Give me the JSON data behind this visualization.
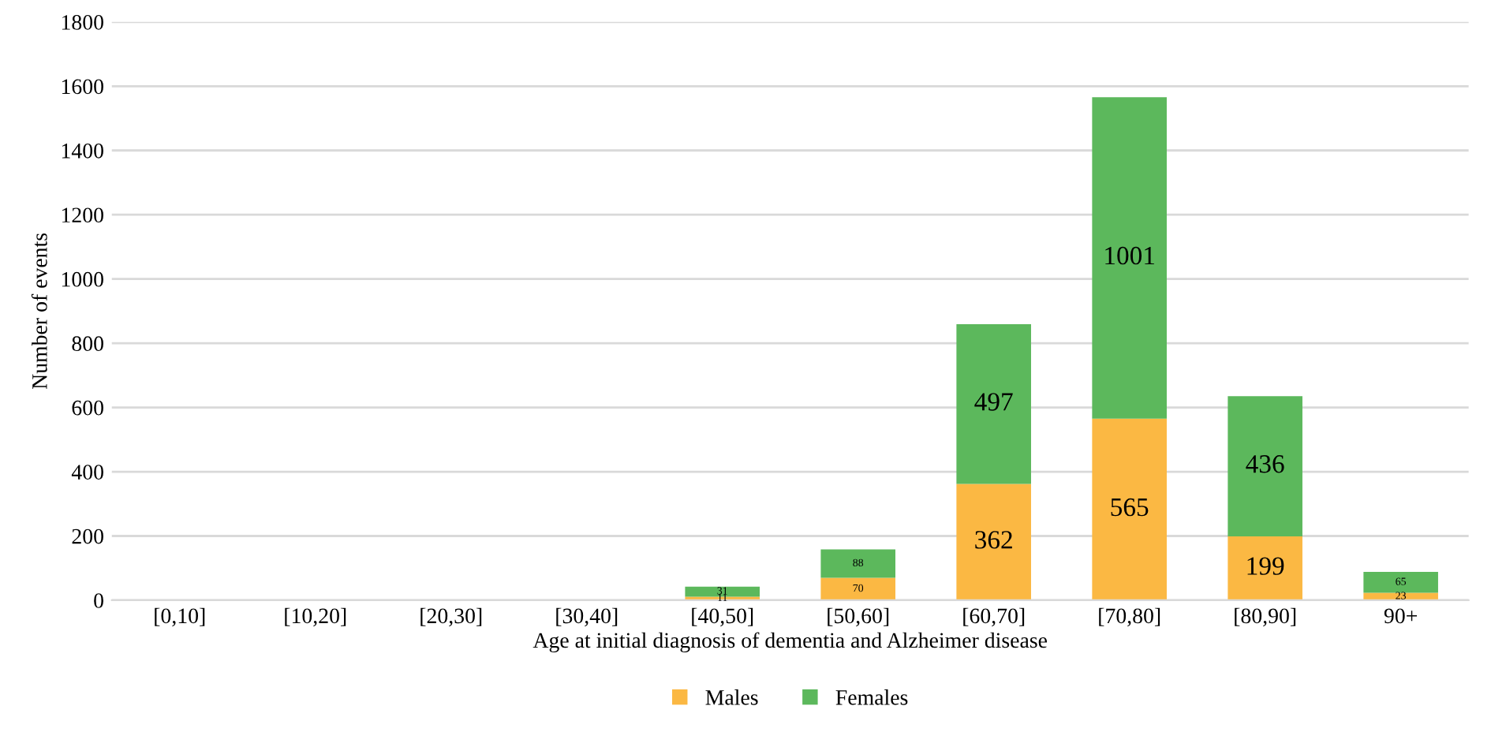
{
  "chart_data": {
    "type": "bar",
    "stacked": true,
    "xlabel": "Age at initial diagnosis of dementia and Alzheimer disease",
    "ylabel": "Number of events",
    "categories": [
      "[0,10]",
      "[10,20]",
      "[20,30]",
      "[30,40]",
      "[40,50]",
      "[50,60]",
      "[60,70]",
      "[70,80]",
      "[80,90]",
      "90+"
    ],
    "series": [
      {
        "name": "Males",
        "color": "#fbb843",
        "values": [
          null,
          null,
          null,
          null,
          11,
          70,
          362,
          565,
          199,
          23
        ]
      },
      {
        "name": "Females",
        "color": "#5cb85c",
        "values": [
          null,
          null,
          null,
          null,
          31,
          88,
          497,
          1001,
          436,
          65
        ]
      }
    ],
    "ylim": [
      0,
      1800
    ],
    "yticks": [
      0,
      200,
      400,
      600,
      800,
      1000,
      1200,
      1400,
      1600,
      1800
    ],
    "grid": "y",
    "legend": "bottom",
    "data_labels": true
  }
}
